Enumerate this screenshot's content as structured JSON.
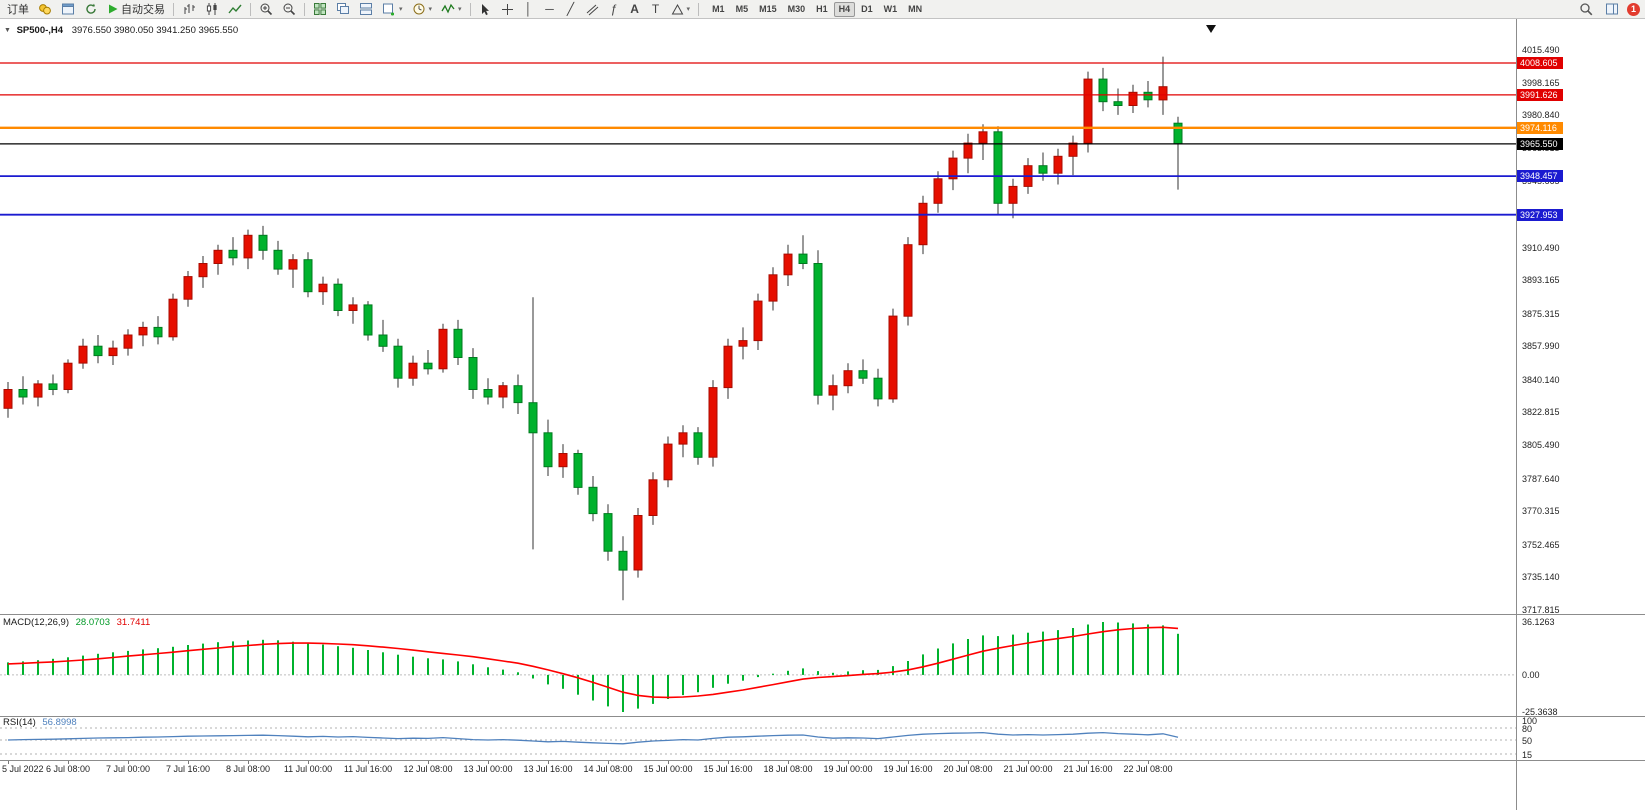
{
  "toolbar": {
    "order_label": "订单",
    "autotrade_label": "自动交易",
    "timeframes": [
      "M1",
      "M5",
      "M15",
      "M30",
      "H1",
      "H4",
      "D1",
      "W1",
      "MN"
    ],
    "active_timeframe": "H4",
    "text_tool_label": "A",
    "label_tool_label": "T",
    "fibo_tool_label": "ƒ",
    "notification": "1"
  },
  "chart": {
    "symbol_period": "SP500-,H4",
    "ohlc_text": "3976.550 3980.050 3941.250 3965.550"
  },
  "chart_data": {
    "type": "candlestick",
    "symbol": "SP500-",
    "timeframe": "H4",
    "title": "SP500-,H4",
    "current_ohlc": {
      "open": 3976.55,
      "high": 3980.05,
      "low": 3941.25,
      "close": 3965.55
    },
    "colors": {
      "up": "#e60f00",
      "up_border": "#a80b00",
      "down": "#00b22d",
      "down_border": "#007a1f",
      "wick": "#333333",
      "macd_hist": "#00b22d",
      "macd_signal": "#ff0000",
      "rsi": "#4f81bd"
    },
    "price_axis_labels": [
      "4015.490",
      "3998.165",
      "3980.840",
      "3963.515",
      "3945.665",
      "3928.340",
      "3910.490",
      "3893.165",
      "3875.315",
      "3857.990",
      "3840.140",
      "3822.815",
      "3805.490",
      "3787.640",
      "3770.315",
      "3752.465",
      "3735.140",
      "3717.815"
    ],
    "hlines": [
      {
        "price": 4008.605,
        "label": "4008.605",
        "color": "#e00000",
        "width": 1.2
      },
      {
        "price": 3991.626,
        "label": "3991.626",
        "color": "#e00000",
        "width": 1.2
      },
      {
        "price": 3974.116,
        "label": "3974.116",
        "color": "#ff8a00",
        "width": 2.4
      },
      {
        "price": 3965.55,
        "label": "3965.550",
        "color": "#000000",
        "width": 1.2
      },
      {
        "price": 3948.457,
        "label": "3948.457",
        "color": "#1b1bd0",
        "width": 1.8
      },
      {
        "price": 3927.953,
        "label": "3927.953",
        "color": "#1b1bd0",
        "width": 1.8
      }
    ],
    "time_labels": [
      {
        "i": 0,
        "t": "5 Jul 2022"
      },
      {
        "i": 4,
        "t": "6 Jul 08:00"
      },
      {
        "i": 8,
        "t": "7 Jul 00:00"
      },
      {
        "i": 12,
        "t": "7 Jul 16:00"
      },
      {
        "i": 16,
        "t": "8 Jul 08:00"
      },
      {
        "i": 20,
        "t": "11 Jul 00:00"
      },
      {
        "i": 24,
        "t": "11 Jul 16:00"
      },
      {
        "i": 28,
        "t": "12 Jul 08:00"
      },
      {
        "i": 32,
        "t": "13 Jul 00:00"
      },
      {
        "i": 36,
        "t": "13 Jul 16:00"
      },
      {
        "i": 40,
        "t": "14 Jul 08:00"
      },
      {
        "i": 44,
        "t": "15 Jul 00:00"
      },
      {
        "i": 48,
        "t": "15 Jul 16:00"
      },
      {
        "i": 52,
        "t": "18 Jul 08:00"
      },
      {
        "i": 56,
        "t": "19 Jul 00:00"
      },
      {
        "i": 60,
        "t": "19 Jul 16:00"
      },
      {
        "i": 64,
        "t": "20 Jul 08:00"
      },
      {
        "i": 68,
        "t": "21 Jul 00:00"
      },
      {
        "i": 72,
        "t": "21 Jul 16:00"
      },
      {
        "i": 76,
        "t": "22 Jul 08:00"
      }
    ],
    "candles": [
      [
        3825,
        3839,
        3820,
        3835
      ],
      [
        3835,
        3842,
        3827,
        3831
      ],
      [
        3831,
        3840,
        3826,
        3838
      ],
      [
        3838,
        3843,
        3832,
        3835
      ],
      [
        3835,
        3851,
        3833,
        3849
      ],
      [
        3849,
        3862,
        3846,
        3858
      ],
      [
        3858,
        3864,
        3849,
        3853
      ],
      [
        3853,
        3861,
        3848,
        3857
      ],
      [
        3857,
        3867,
        3853,
        3864
      ],
      [
        3864,
        3871,
        3858,
        3868
      ],
      [
        3868,
        3874,
        3859,
        3863
      ],
      [
        3863,
        3886,
        3861,
        3883
      ],
      [
        3883,
        3898,
        3879,
        3895
      ],
      [
        3895,
        3906,
        3889,
        3902
      ],
      [
        3902,
        3912,
        3896,
        3909
      ],
      [
        3909,
        3916,
        3901,
        3905
      ],
      [
        3905,
        3920,
        3899,
        3917
      ],
      [
        3917,
        3922,
        3904,
        3909
      ],
      [
        3909,
        3914,
        3896,
        3899
      ],
      [
        3899,
        3907,
        3889,
        3904
      ],
      [
        3904,
        3908,
        3884,
        3887
      ],
      [
        3887,
        3895,
        3880,
        3891
      ],
      [
        3891,
        3894,
        3874,
        3877
      ],
      [
        3877,
        3884,
        3870,
        3880
      ],
      [
        3880,
        3882,
        3861,
        3864
      ],
      [
        3864,
        3872,
        3855,
        3858
      ],
      [
        3858,
        3862,
        3836,
        3841
      ],
      [
        3841,
        3853,
        3837,
        3849
      ],
      [
        3849,
        3856,
        3843,
        3846
      ],
      [
        3846,
        3870,
        3844,
        3867
      ],
      [
        3867,
        3872,
        3848,
        3852
      ],
      [
        3852,
        3857,
        3830,
        3835
      ],
      [
        3835,
        3841,
        3827,
        3831
      ],
      [
        3831,
        3839,
        3825,
        3837
      ],
      [
        3837,
        3843,
        3822,
        3828
      ],
      [
        3828,
        3884,
        3750,
        3812
      ],
      [
        3812,
        3819,
        3789,
        3794
      ],
      [
        3794,
        3806,
        3788,
        3801
      ],
      [
        3801,
        3803,
        3779,
        3783
      ],
      [
        3783,
        3789,
        3765,
        3769
      ],
      [
        3769,
        3774,
        3744,
        3749
      ],
      [
        3749,
        3757,
        3723,
        3739
      ],
      [
        3739,
        3772,
        3735,
        3768
      ],
      [
        3768,
        3791,
        3763,
        3787
      ],
      [
        3787,
        3810,
        3783,
        3806
      ],
      [
        3806,
        3816,
        3799,
        3812
      ],
      [
        3812,
        3815,
        3795,
        3799
      ],
      [
        3799,
        3840,
        3794,
        3836
      ],
      [
        3836,
        3862,
        3830,
        3858
      ],
      [
        3858,
        3868,
        3851,
        3861
      ],
      [
        3861,
        3886,
        3856,
        3882
      ],
      [
        3882,
        3900,
        3877,
        3896
      ],
      [
        3896,
        3912,
        3890,
        3907
      ],
      [
        3907,
        3917,
        3899,
        3902
      ],
      [
        3902,
        3909,
        3827,
        3832
      ],
      [
        3832,
        3843,
        3824,
        3837
      ],
      [
        3837,
        3849,
        3833,
        3845
      ],
      [
        3845,
        3851,
        3838,
        3841
      ],
      [
        3841,
        3846,
        3826,
        3830
      ],
      [
        3830,
        3878,
        3828,
        3874
      ],
      [
        3874,
        3916,
        3869,
        3912
      ],
      [
        3912,
        3938,
        3907,
        3934
      ],
      [
        3934,
        3951,
        3929,
        3947
      ],
      [
        3947,
        3962,
        3941,
        3958
      ],
      [
        3958,
        3971,
        3950,
        3966
      ],
      [
        3966,
        3976,
        3957,
        3972
      ],
      [
        3972,
        3975,
        3928,
        3934
      ],
      [
        3934,
        3947,
        3926,
        3943
      ],
      [
        3943,
        3958,
        3939,
        3954
      ],
      [
        3954,
        3961,
        3946,
        3950
      ],
      [
        3950,
        3963,
        3944,
        3959
      ],
      [
        3959,
        3970,
        3949,
        3966
      ],
      [
        3966,
        4004,
        3961,
        4000
      ],
      [
        4000,
        4006,
        3983,
        3988
      ],
      [
        3988,
        3995,
        3981,
        3986
      ],
      [
        3986,
        3997,
        3982,
        3993
      ],
      [
        3993,
        3999,
        3985,
        3989
      ],
      [
        3989,
        4012,
        3981,
        3996
      ],
      [
        3976.55,
        3980.05,
        3941.25,
        3965.55
      ]
    ],
    "macd": {
      "label": "MACD(12,26,9)",
      "value": "28.0703",
      "signal_value": "31.7411",
      "ymax": 36.1263,
      "ymin": -25.3638,
      "axis": [
        {
          "v": 36.1263,
          "t": "36.1263"
        },
        {
          "v": 0,
          "t": "0.00"
        },
        {
          "v": -25.3638,
          "t": "-25.3638"
        }
      ],
      "histogram": [
        8.5,
        9.2,
        10,
        11,
        12,
        13.2,
        14.4,
        15.4,
        16.4,
        17.4,
        18.2,
        19.2,
        20.4,
        21.4,
        22.3,
        22.9,
        23.5,
        24,
        23.6,
        22.7,
        21.7,
        20.7,
        19.6,
        18.5,
        17,
        15.4,
        13.8,
        12.4,
        11.3,
        10.6,
        9.2,
        7.2,
        5.2,
        3.6,
        1.8,
        -2.5,
        -6.5,
        -9.5,
        -13.5,
        -17.5,
        -21.5,
        -25.36,
        -23,
        -19.8,
        -16.5,
        -13.8,
        -11.8,
        -8.8,
        -6,
        -4,
        -1.5,
        0.8,
        2.8,
        4.4,
        2.6,
        1.4,
        2.4,
        3.2,
        3.4,
        6,
        9.5,
        14,
        18,
        21.5,
        24.5,
        27,
        26.5,
        27.5,
        28.8,
        29.6,
        30.6,
        32,
        34.4,
        36.13,
        35.8,
        35.2,
        34.4,
        33.8,
        28.07
      ],
      "signal": [
        7.5,
        7.9,
        8.4,
        8.9,
        9.5,
        10.2,
        11.0,
        11.9,
        12.8,
        13.7,
        14.6,
        15.5,
        16.5,
        17.5,
        18.4,
        19.3,
        20.1,
        20.9,
        21.4,
        21.7,
        21.7,
        21.5,
        21.1,
        20.6,
        19.9,
        19.0,
        18.0,
        16.9,
        15.8,
        14.7,
        13.6,
        12.4,
        11.0,
        9.5,
        8.0,
        5.9,
        3.4,
        0.8,
        -2.0,
        -5.1,
        -8.4,
        -11.8,
        -14.0,
        -15.2,
        -15.4,
        -15.1,
        -14.4,
        -13.3,
        -11.8,
        -10.3,
        -8.5,
        -6.6,
        -4.7,
        -2.9,
        -1.8,
        -1.2,
        -0.5,
        0.3,
        0.9,
        1.9,
        3.4,
        5.5,
        8.0,
        10.7,
        13.5,
        16.2,
        18.2,
        20.1,
        21.8,
        23.4,
        24.8,
        26.2,
        27.9,
        29.5,
        30.8,
        31.7,
        32.2,
        32.5,
        31.74
      ]
    },
    "rsi": {
      "label": "RSI(14)",
      "value": "56.8998",
      "levels": [
        80,
        50,
        15
      ],
      "axis": [
        {
          "v": 100,
          "t": "100"
        },
        {
          "v": 80,
          "t": "80"
        },
        {
          "v": 50,
          "t": "50"
        },
        {
          "v": 15,
          "t": "15"
        }
      ],
      "values": [
        50,
        51,
        51.5,
        52,
        53,
        54,
        55,
        55.5,
        56,
        57,
        57.5,
        58.5,
        59.5,
        60,
        60.5,
        61,
        61.5,
        62,
        61,
        59.5,
        58,
        59,
        57.5,
        58.5,
        56.5,
        55,
        53.5,
        54.5,
        54,
        56,
        53.5,
        51,
        50,
        51,
        49.5,
        47.5,
        45.5,
        46.5,
        44.5,
        43,
        41.5,
        40.5,
        44.5,
        47.5,
        49,
        51,
        50,
        54,
        57,
        58,
        59.5,
        61,
        62,
        62.5,
        57.5,
        54.5,
        55.5,
        55,
        53.5,
        57.5,
        61.5,
        64.5,
        66,
        67,
        67.5,
        68.5,
        64.5,
        62.5,
        63.5,
        62.5,
        63.5,
        64.5,
        67,
        68.5,
        66,
        64.5,
        63,
        65.5,
        56.9
      ]
    }
  }
}
